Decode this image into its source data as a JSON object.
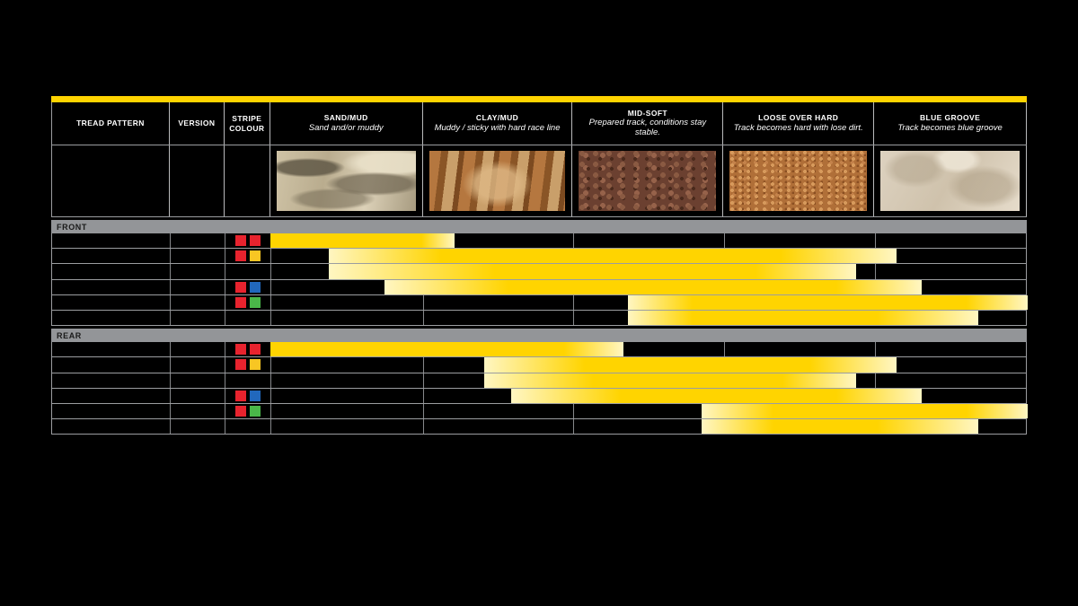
{
  "page": {
    "background": "#000000"
  },
  "table": {
    "accent_bar_color": "#FFD400",
    "border_color": "#9b9da0",
    "section_band_color": "#939598",
    "bar_colors": {
      "solid": "#FFD400",
      "light": "#FFF6C2"
    },
    "stripe_palette": {
      "red": "#E8232E",
      "yellow": "#F8C623",
      "blue": "#2168BD",
      "green": "#4AB749"
    },
    "columns": [
      {
        "key": "tread",
        "label": "TREAD PATTERN",
        "sub": ""
      },
      {
        "key": "version",
        "label": "VERSION",
        "sub": ""
      },
      {
        "key": "stripe",
        "label": "STRIPE COLOUR",
        "sub": ""
      },
      {
        "key": "sand",
        "label": "SAND/MUD",
        "sub": "Sand and/or muddy"
      },
      {
        "key": "clay",
        "label": "CLAY/MUD",
        "sub": "Muddy / sticky with hard race line"
      },
      {
        "key": "mid",
        "label": "MID-SOFT",
        "sub": "Prepared track, conditions stay stable."
      },
      {
        "key": "loose",
        "label": "LOOSE OVER HARD",
        "sub": "Track becomes hard with lose dirt."
      },
      {
        "key": "blue",
        "label": "BLUE GROOVE",
        "sub": "Track becomes blue groove"
      }
    ],
    "terrain_photos": [
      {
        "name": "sand-mud-photo",
        "texture": "ph-sand"
      },
      {
        "name": "clay-mud-photo",
        "texture": "ph-clay"
      },
      {
        "name": "mid-soft-photo",
        "texture": "ph-mid"
      },
      {
        "name": "loose-over-hard-photo",
        "texture": "ph-loose"
      },
      {
        "name": "blue-groove-photo",
        "texture": "ph-blue"
      }
    ],
    "sections": [
      {
        "label": "FRONT",
        "rows": [
          {
            "tread": "",
            "version": "",
            "stripes": [
              "red",
              "red"
            ],
            "bar": {
              "start": 0,
              "full": 0,
              "solid_end": 168,
              "end": 205
            }
          },
          {
            "tread": "",
            "version": "",
            "stripes": [
              "red",
              "yellow"
            ],
            "bar": {
              "start": 65,
              "full": 190,
              "solid_end": 568,
              "end": 697
            }
          },
          {
            "tread": "",
            "version": "",
            "stripes": [],
            "bar": {
              "start": 65,
              "full": 250,
              "solid_end": 540,
              "end": 652
            }
          },
          {
            "tread": "",
            "version": "",
            "stripes": [
              "red",
              "blue"
            ],
            "bar": {
              "start": 127,
              "full": 265,
              "solid_end": 630,
              "end": 725
            }
          },
          {
            "tread": "",
            "version": "",
            "stripes": [
              "red",
              "green"
            ],
            "bar": {
              "start": 398,
              "full": 470,
              "solid_end": 775,
              "end": 843
            }
          },
          {
            "tread": "",
            "version": "",
            "stripes": [],
            "bar": {
              "start": 398,
              "full": 470,
              "solid_end": 675,
              "end": 788
            }
          }
        ]
      },
      {
        "label": "REAR",
        "rows": [
          {
            "tread": "",
            "version": "",
            "stripes": [
              "red",
              "red"
            ],
            "bar": {
              "start": 0,
              "full": 0,
              "solid_end": 327,
              "end": 393
            }
          },
          {
            "tread": "",
            "version": "",
            "stripes": [
              "red",
              "yellow"
            ],
            "bar": {
              "start": 238,
              "full": 350,
              "solid_end": 600,
              "end": 697
            }
          },
          {
            "tread": "",
            "version": "",
            "stripes": [],
            "bar": {
              "start": 238,
              "full": 360,
              "solid_end": 570,
              "end": 652
            }
          },
          {
            "tread": "",
            "version": "",
            "stripes": [
              "red",
              "blue"
            ],
            "bar": {
              "start": 268,
              "full": 390,
              "solid_end": 630,
              "end": 725
            }
          },
          {
            "tread": "",
            "version": "",
            "stripes": [
              "red",
              "green"
            ],
            "bar": {
              "start": 480,
              "full": 560,
              "solid_end": 775,
              "end": 843
            }
          },
          {
            "tread": "",
            "version": "",
            "stripes": [],
            "bar": {
              "start": 480,
              "full": 560,
              "solid_end": 675,
              "end": 788
            }
          }
        ]
      }
    ]
  },
  "chart_data": {
    "type": "bar",
    "subtype": "horizontal-range (tyre application chart)",
    "title": "",
    "x_axis": {
      "categories": [
        "SAND/MUD",
        "CLAY/MUD",
        "MID-SOFT",
        "LOOSE OVER HARD",
        "BLUE GROOVE"
      ],
      "category_descriptions": [
        "Sand and/or muddy",
        "Muddy / sticky with hard race line",
        "Prepared track, conditions stay stable.",
        "Track becomes hard with lose dirt.",
        "Track becomes blue groove"
      ],
      "units": "condition index, 0 = left edge of SAND/MUD, 5 = right edge of BLUE GROOVE",
      "range": [
        0,
        5
      ]
    },
    "legend_position": "none",
    "grid": "column separators only",
    "series": [
      {
        "section": "FRONT",
        "row": 1,
        "stripes": [
          "red",
          "red"
        ],
        "range": [
          0.0,
          1.2
        ]
      },
      {
        "section": "FRONT",
        "row": 2,
        "stripes": [
          "red",
          "yellow"
        ],
        "range": [
          0.4,
          4.1
        ]
      },
      {
        "section": "FRONT",
        "row": 3,
        "stripes": [],
        "range": [
          0.4,
          3.9
        ]
      },
      {
        "section": "FRONT",
        "row": 4,
        "stripes": [
          "red",
          "blue"
        ],
        "range": [
          0.75,
          4.3
        ]
      },
      {
        "section": "FRONT",
        "row": 5,
        "stripes": [
          "red",
          "green"
        ],
        "range": [
          2.35,
          5.0
        ]
      },
      {
        "section": "FRONT",
        "row": 6,
        "stripes": [],
        "range": [
          2.35,
          4.7
        ]
      },
      {
        "section": "REAR",
        "row": 1,
        "stripes": [
          "red",
          "red"
        ],
        "range": [
          0.0,
          2.35
        ]
      },
      {
        "section": "REAR",
        "row": 2,
        "stripes": [
          "red",
          "yellow"
        ],
        "range": [
          1.4,
          4.1
        ]
      },
      {
        "section": "REAR",
        "row": 3,
        "stripes": [],
        "range": [
          1.4,
          3.9
        ]
      },
      {
        "section": "REAR",
        "row": 4,
        "stripes": [
          "red",
          "blue"
        ],
        "range": [
          1.6,
          4.3
        ]
      },
      {
        "section": "REAR",
        "row": 5,
        "stripes": [
          "red",
          "green"
        ],
        "range": [
          2.85,
          5.0
        ]
      },
      {
        "section": "REAR",
        "row": 6,
        "stripes": [],
        "range": [
          2.85,
          4.7
        ]
      }
    ]
  }
}
